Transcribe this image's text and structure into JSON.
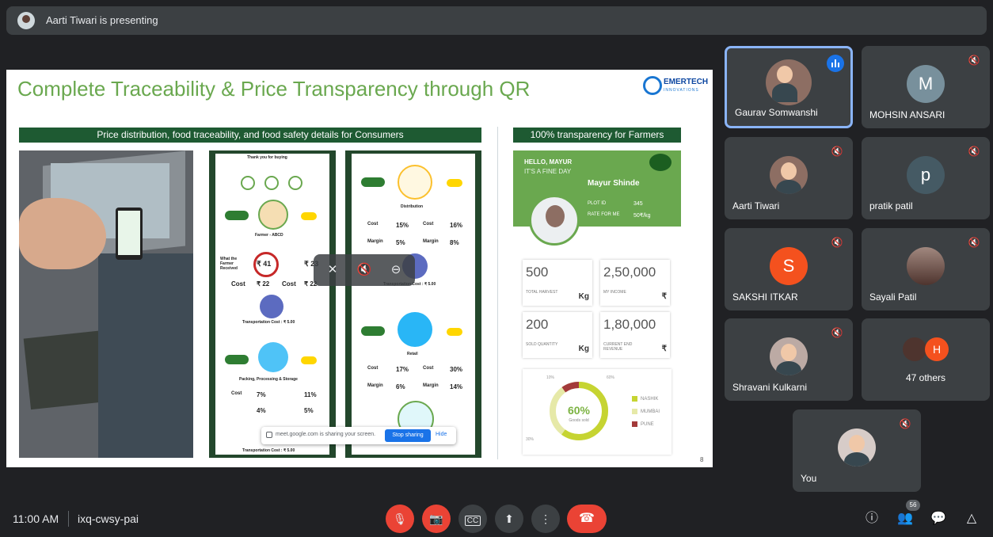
{
  "presenter_bar": {
    "text": "Aarti Tiwari is presenting"
  },
  "slide": {
    "title": "Complete Traceability & Price Transparency through QR",
    "logo_text": "EMERTECH",
    "logo_sub": "INNOVATIONS",
    "banner_left": "Price distribution, food traceability, and food safety details for Consumers",
    "banner_right": "100% transparency for Farmers",
    "mock1": {
      "thanks": "Thank you for buying",
      "farmer": "Farmer - ABCD",
      "what_paid": "What the Farmer Received",
      "price1": "₹ 41",
      "price2": "₹ 23",
      "cost_label": "Cost",
      "cost1": "₹ 22",
      "cost2": "₹ 22",
      "transport": "Transportation Cost : ₹ 5.00",
      "packing": "Packing, Processing & Storage",
      "c1": "7%",
      "c2": "11%",
      "m1": "4%",
      "m2": "5%",
      "transport2": "Transportation Cost : ₹ 5.00"
    },
    "mock2": {
      "distribution": "Distribution",
      "cost_label": "Cost",
      "margin_label": "Margin",
      "d_c1": "15%",
      "d_c2": "16%",
      "d_m1": "5%",
      "d_m2": "8%",
      "transport": "Transportation Cost : ₹ 5.00",
      "retail": "Retail",
      "r_c1": "17%",
      "r_c2": "30%",
      "r_m1": "6%",
      "r_m2": "14%"
    },
    "farmer_card": {
      "hello": "HELLO, MAYUR",
      "fine": "IT'S A FINE DAY",
      "name": "Mayur Shinde",
      "plot_label": "PLOT ID",
      "plot_value": "345",
      "rate_label": "RATE FOR ME",
      "rate_value": "50₹/kg"
    },
    "stats": [
      {
        "value": "500",
        "label": "TOTAL HARVEST",
        "unit": "Kg"
      },
      {
        "value": "2,50,000",
        "label": "MY INCOME",
        "unit": "₹"
      },
      {
        "value": "200",
        "label": "SOLD QUANTITY",
        "unit": "Kg"
      },
      {
        "value": "1,80,000",
        "label": "CURRENT END REVENUE",
        "unit": "₹"
      }
    ],
    "donut": {
      "center": "60%",
      "sub": "Goods sold",
      "labels": [
        "10%",
        "30%",
        "60%"
      ],
      "legend": [
        {
          "name": "NASHIK",
          "color": "#c6d432"
        },
        {
          "name": "MUMBAI",
          "color": "#e6e9a8"
        },
        {
          "name": "PUNE",
          "color": "#a33a3a"
        }
      ]
    },
    "page_number": "8"
  },
  "share_bar": {
    "text": "meet.google.com is sharing your screen.",
    "stop": "Stop sharing",
    "hide": "Hide"
  },
  "participants": [
    {
      "name": "Gaurav Somwanshi",
      "initial": "",
      "active": true
    },
    {
      "name": "MOHSIN ANSARI",
      "initial": "M",
      "color": "#78909c"
    },
    {
      "name": "Aarti Tiwari",
      "initial": ""
    },
    {
      "name": "pratik patil",
      "initial": "p",
      "color": "#455a64"
    },
    {
      "name": "SAKSHI ITKAR",
      "initial": "S",
      "color": "#f4511e"
    },
    {
      "name": "Sayali Patil",
      "initial": ""
    },
    {
      "name": "Shravani Kulkarni",
      "initial": ""
    },
    {
      "name": "47 others",
      "initial": "H",
      "color": "#f4511e"
    },
    {
      "name": "You",
      "initial": ""
    }
  ],
  "bottom_bar": {
    "time": "11:00 AM",
    "meeting_code": "ixq-cwsy-pai",
    "people_count": "56"
  }
}
